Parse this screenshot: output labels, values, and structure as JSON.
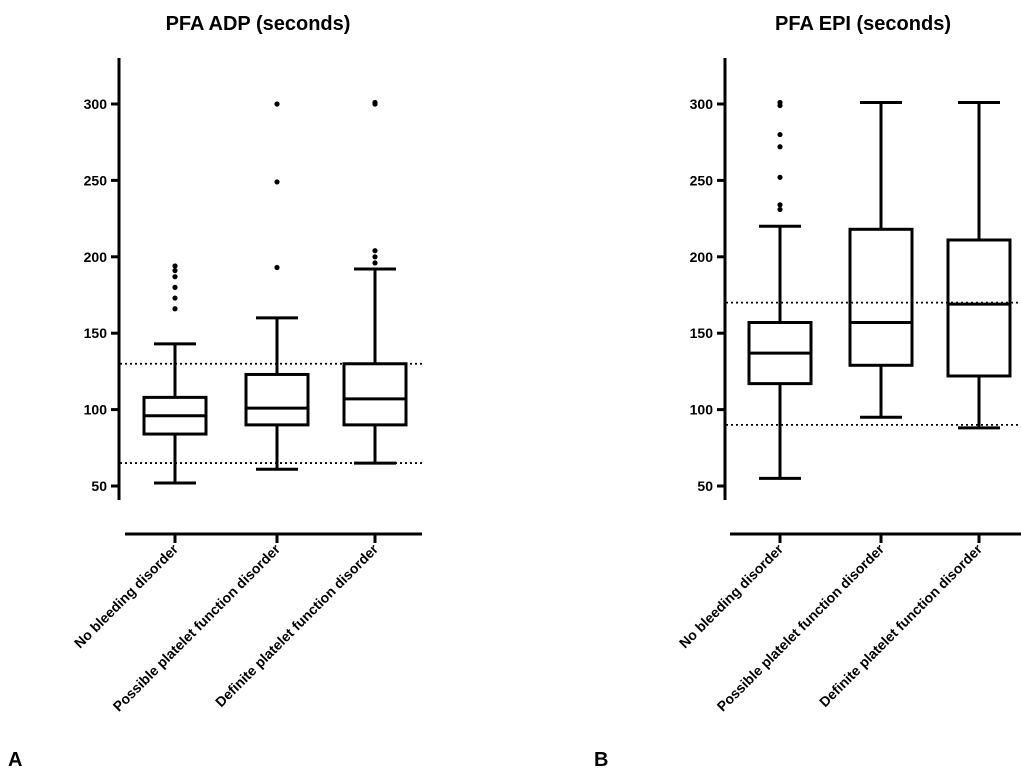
{
  "chart_data": [
    {
      "type": "box",
      "panel_label": "A",
      "title": "PFA ADP (seconds)",
      "categories": [
        "No bleeding disorder",
        "Possible platelet function disorder",
        "Definite platelet function disorder"
      ],
      "y_ticks": [
        50,
        100,
        150,
        200,
        250,
        300
      ],
      "ylim": [
        40,
        330
      ],
      "boxes": [
        {
          "min": 52,
          "q1": 84,
          "median": 96,
          "q3": 108,
          "max": 143,
          "outliers": [
            166,
            173,
            180,
            187,
            191,
            194
          ]
        },
        {
          "min": 61,
          "q1": 90,
          "median": 101,
          "q3": 123,
          "max": 160,
          "outliers": [
            193,
            249,
            300
          ]
        },
        {
          "min": 65,
          "q1": 90,
          "median": 107,
          "q3": 130,
          "max": 192,
          "outliers": [
            196,
            200,
            204,
            300,
            301
          ]
        }
      ],
      "reference_lines": [
        65,
        130
      ],
      "grid": false
    },
    {
      "type": "box",
      "panel_label": "B",
      "title": "PFA EPI (seconds)",
      "categories": [
        "No bleeding disorder",
        "Possible platelet function disorder",
        "Definite platelet function disorder"
      ],
      "y_ticks": [
        50,
        100,
        150,
        200,
        250,
        300
      ],
      "ylim": [
        40,
        330
      ],
      "boxes": [
        {
          "min": 55,
          "q1": 117,
          "median": 137,
          "q3": 157,
          "max": 220,
          "outliers": [
            231,
            234,
            252,
            272,
            280,
            299,
            301
          ]
        },
        {
          "min": 95,
          "q1": 129,
          "median": 157,
          "q3": 218,
          "max": 301,
          "outliers": []
        },
        {
          "min": 88,
          "q1": 122,
          "median": 169,
          "q3": 211,
          "max": 301,
          "outliers": []
        }
      ],
      "reference_lines": [
        90,
        170
      ],
      "grid": false
    }
  ]
}
